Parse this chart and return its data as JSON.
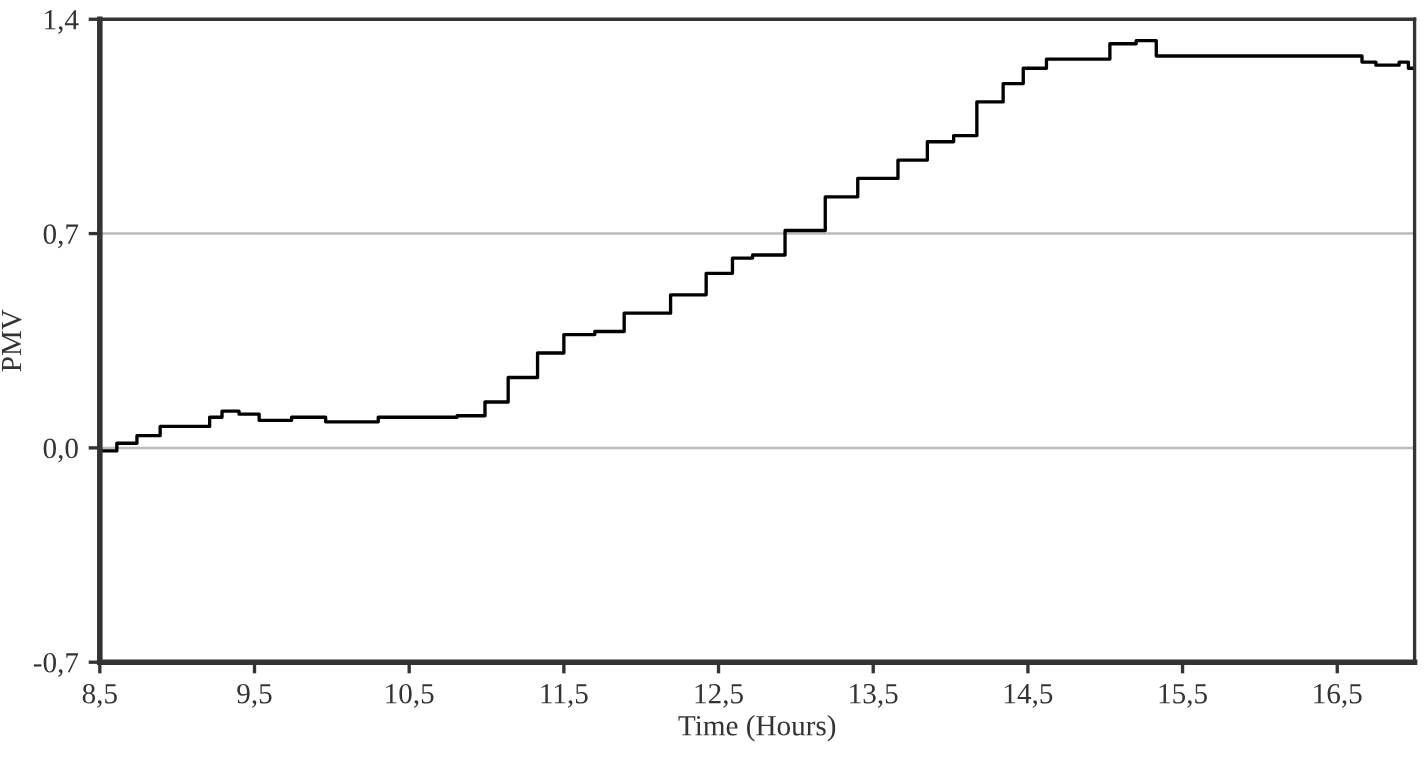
{
  "chart_data": {
    "type": "step",
    "xlabel": "Time (Hours)",
    "ylabel": "PMV",
    "xlim": [
      8.5,
      17.0
    ],
    "ylim": [
      -0.7,
      1.4
    ],
    "xticks": [
      {
        "value": 8.5,
        "label": "8,5"
      },
      {
        "value": 9.5,
        "label": "9,5"
      },
      {
        "value": 10.5,
        "label": "10,5"
      },
      {
        "value": 11.5,
        "label": "11,5"
      },
      {
        "value": 12.5,
        "label": "12,5"
      },
      {
        "value": 13.5,
        "label": "13,5"
      },
      {
        "value": 14.5,
        "label": "14,5"
      },
      {
        "value": 15.5,
        "label": "15,5"
      },
      {
        "value": 16.5,
        "label": "16,5"
      }
    ],
    "yticks": [
      {
        "value": -0.7,
        "label": "-0,7"
      },
      {
        "value": 0.0,
        "label": "0,0"
      },
      {
        "value": 0.7,
        "label": "0,7"
      },
      {
        "value": 1.4,
        "label": "1,4"
      }
    ],
    "grid": "y",
    "marker": "none",
    "line_style": "solid",
    "series": [
      {
        "color": "#000000",
        "x": [
          8.5,
          8.61,
          8.74,
          8.89,
          9.21,
          9.29,
          9.4,
          9.53,
          9.74,
          9.96,
          10.3,
          10.81,
          10.99,
          11.14,
          11.33,
          11.5,
          11.7,
          11.89,
          12.19,
          12.42,
          12.59,
          12.72,
          12.93,
          13.19,
          13.4,
          13.66,
          13.85,
          14.02,
          14.17,
          14.34,
          14.47,
          14.62,
          14.88,
          15.03,
          15.2,
          15.33,
          16.62,
          16.66,
          16.75,
          16.9,
          16.96,
          17.0
        ],
        "values": [
          -0.01,
          0.015,
          0.04,
          0.07,
          0.1,
          0.12,
          0.11,
          0.09,
          0.1,
          0.085,
          0.1,
          0.105,
          0.15,
          0.23,
          0.31,
          0.37,
          0.38,
          0.44,
          0.5,
          0.57,
          0.62,
          0.63,
          0.71,
          0.82,
          0.88,
          0.94,
          1.0,
          1.02,
          1.13,
          1.19,
          1.24,
          1.27,
          1.27,
          1.32,
          1.33,
          1.28,
          1.28,
          1.26,
          1.25,
          1.26,
          1.24,
          1.24
        ]
      }
    ]
  }
}
